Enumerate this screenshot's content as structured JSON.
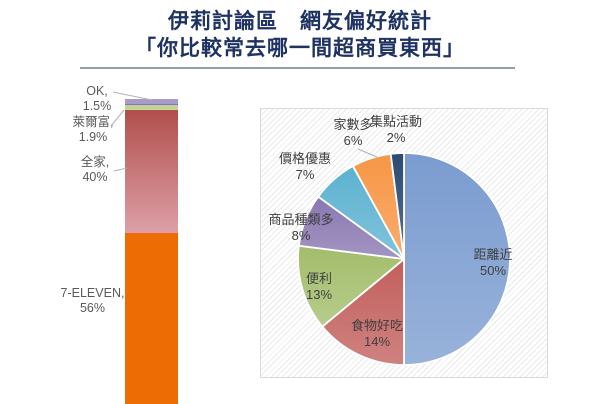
{
  "title": {
    "line1": "伊莉討論區　網友偏好統計",
    "line2": "「你比較常去哪一間超商買東西」"
  },
  "colors": {
    "title_text": "#1e3263",
    "title_rule": "#959cab",
    "label_gray": "#5a5a5a",
    "pie_label_gray": "#3f3f3f",
    "leader_line": "#b3b3b3",
    "plot_border": "#d9d9d9",
    "hatch_line": "#eaeaea"
  },
  "chart_data": [
    {
      "type": "bar",
      "subtype": "stacked-column-100",
      "question": "你比較常去哪一間超商買東西",
      "segments": [
        {
          "name": "7-ELEVEN",
          "value": 56,
          "label": "7-ELEVEN,",
          "pct": "56%",
          "color": "#ed6d04",
          "color2": "#ed6d04"
        },
        {
          "name": "全家",
          "value": 40,
          "label": "全家,",
          "pct": "40%",
          "color": "#b14f4c",
          "color2": "#dda0a7"
        },
        {
          "name": "萊爾富",
          "value": 1.9,
          "label": "萊爾富,",
          "pct": "1.9%",
          "color": "#bfd092",
          "color2": "#c6d69c"
        },
        {
          "name": "OK",
          "value": 1.5,
          "label": "OK,",
          "pct": "1.5%",
          "color": "#a79cc9",
          "color2": "#a79cc9"
        }
      ]
    },
    {
      "type": "pie",
      "direction": "clockwise",
      "start_angle_deg": 0,
      "slices": [
        {
          "name": "距離近",
          "value": 50,
          "pct": "50%",
          "color": "#7b9cd0"
        },
        {
          "name": "食物好吃",
          "value": 14,
          "pct": "14%",
          "color": "#c25f5c"
        },
        {
          "name": "便利",
          "value": 13,
          "pct": "13%",
          "color": "#a3bd6b"
        },
        {
          "name": "商品種類多",
          "value": 8,
          "pct": "8%",
          "color": "#8977b1"
        },
        {
          "name": "價格優惠",
          "value": 7,
          "pct": "7%",
          "color": "#5cb2d1"
        },
        {
          "name": "家數多",
          "value": 6,
          "pct": "6%",
          "color": "#f79646"
        },
        {
          "name": "集點活動",
          "value": 2,
          "pct": "2%",
          "color": "#2c4a72"
        }
      ]
    }
  ]
}
